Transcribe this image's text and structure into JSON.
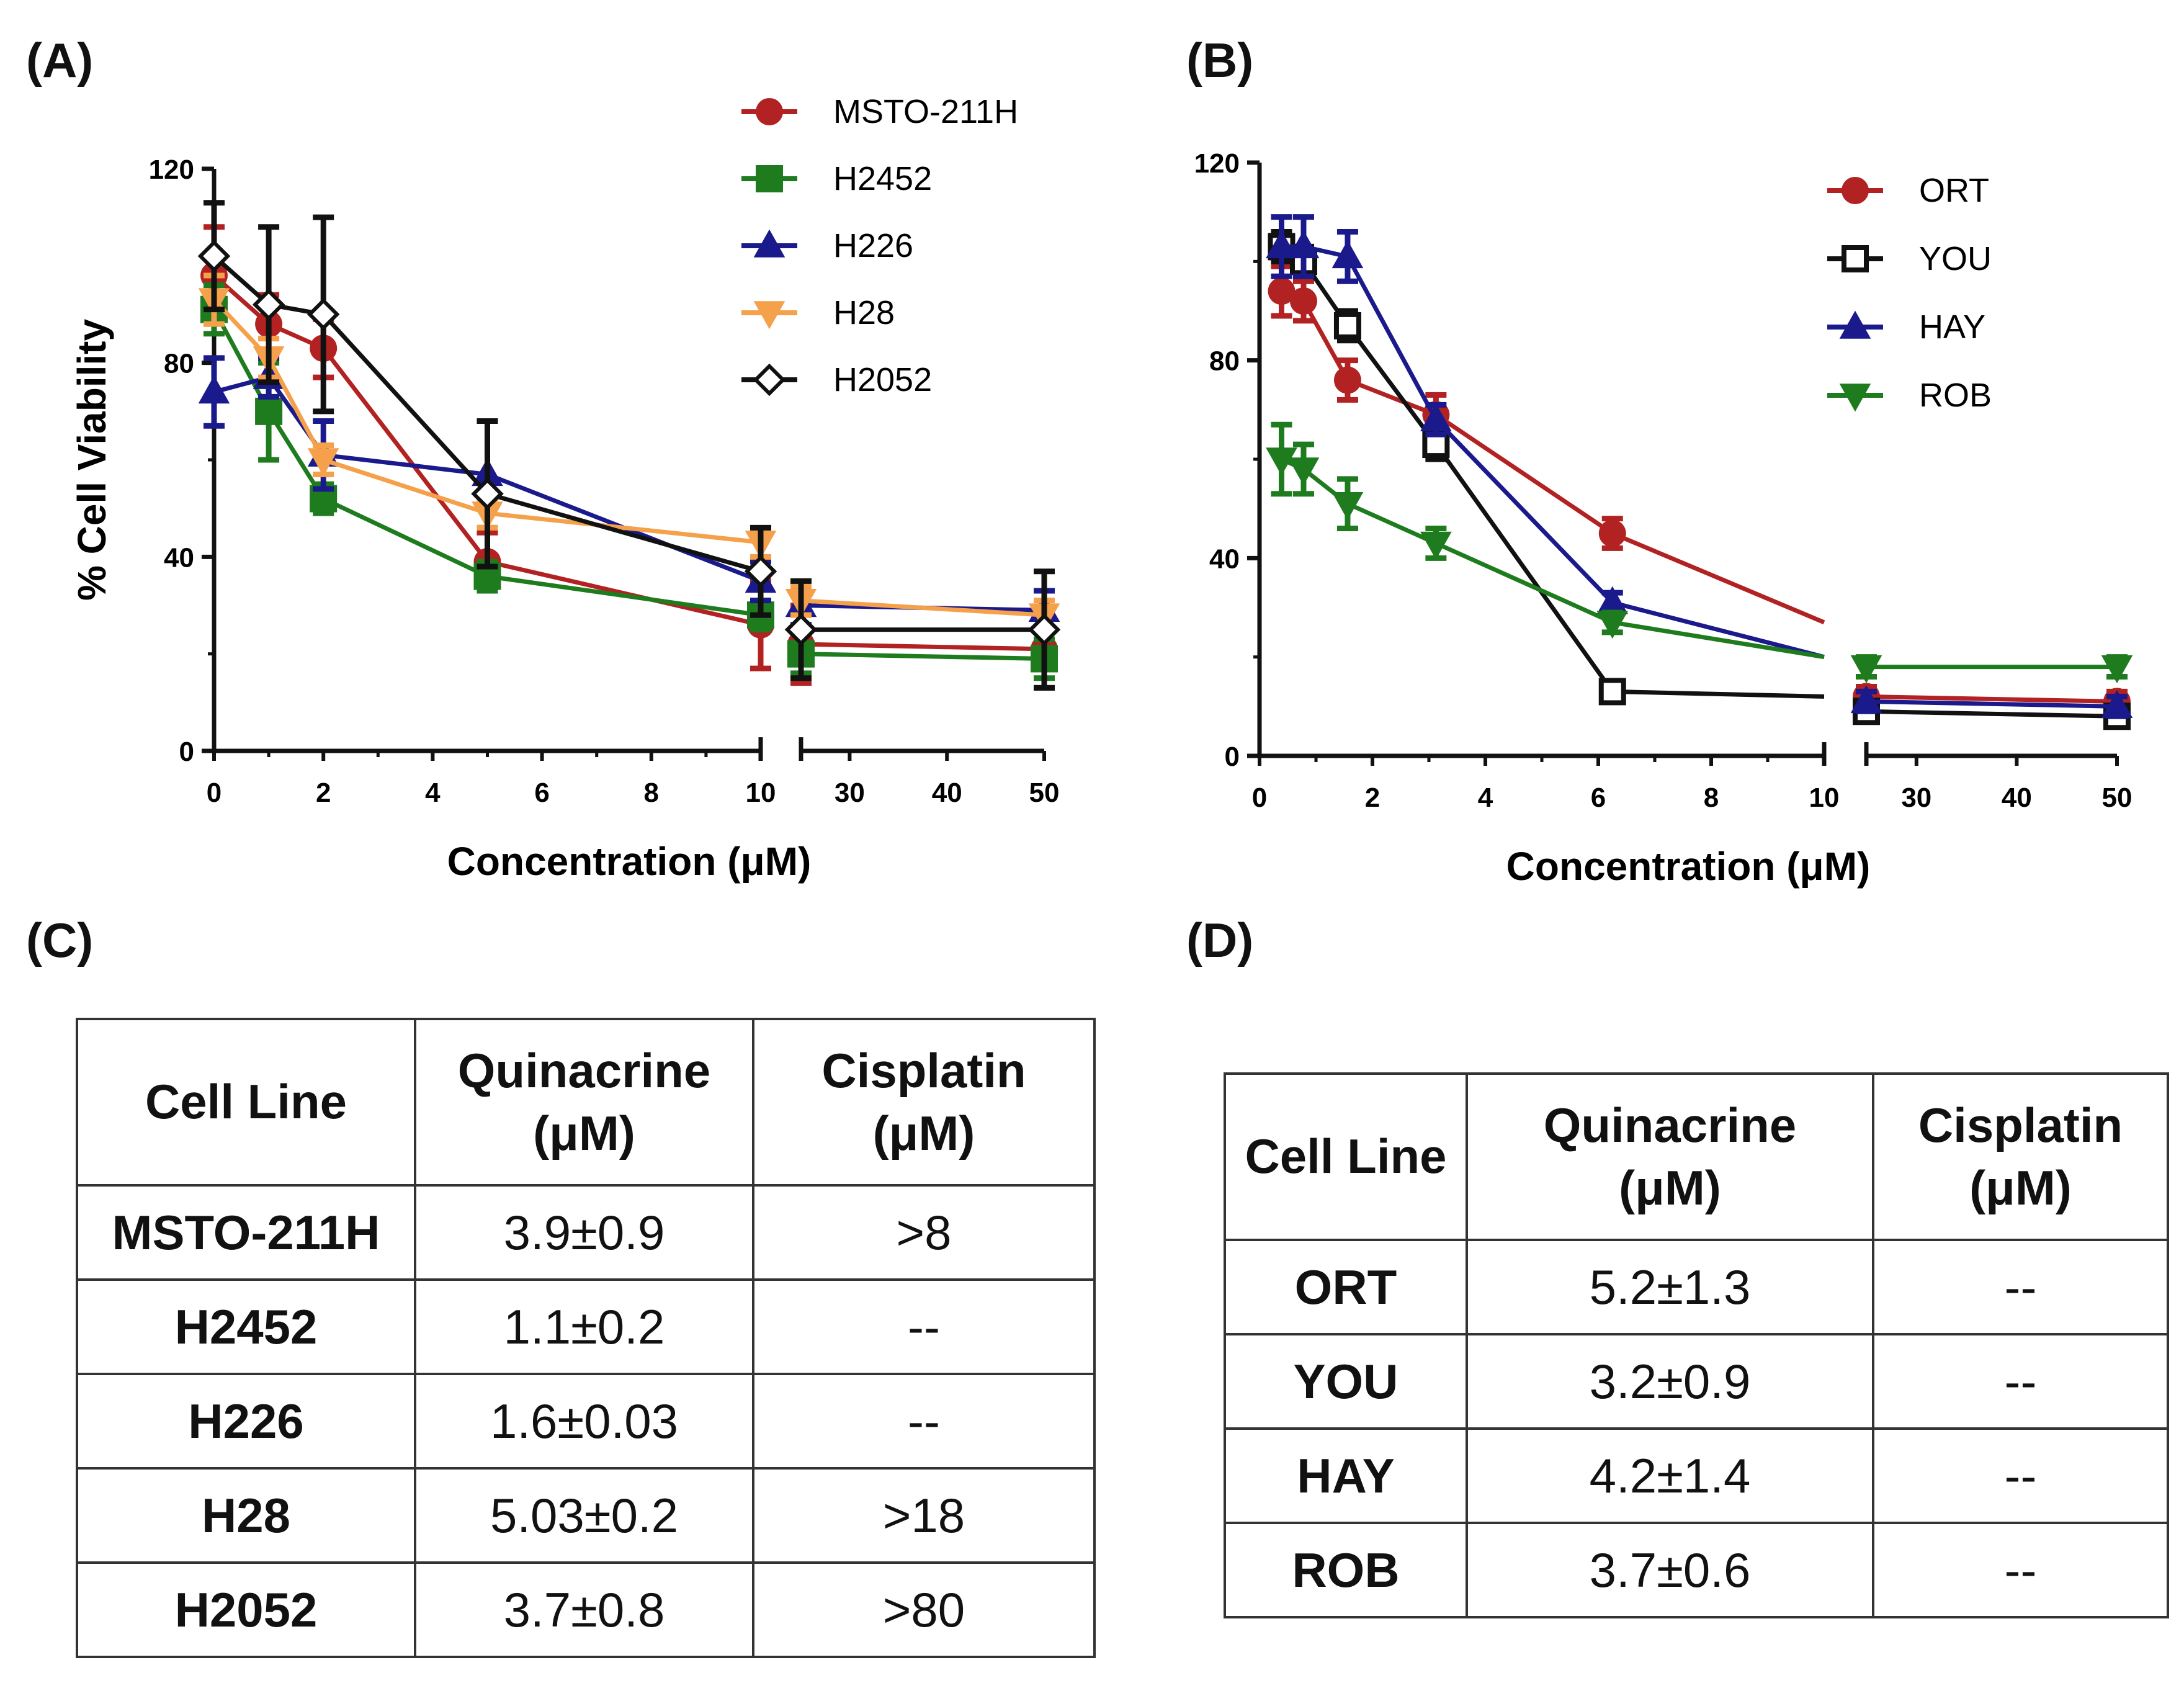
{
  "chart_data": [
    {
      "type": "line",
      "panel": "(A)",
      "xlabel": "Concentration (μM)",
      "ylabel": "% Cell Viability",
      "ylim": [
        0,
        120
      ],
      "yticks": [
        "0",
        "40",
        "80",
        "120"
      ],
      "xticks_left": [
        "0",
        "2",
        "4",
        "6",
        "8",
        "10"
      ],
      "xticks_right": [
        "30",
        "40",
        "50"
      ],
      "x_break": [
        10,
        25
      ],
      "legend_position": "top-right",
      "series": [
        {
          "name": "MSTO-211H",
          "color": "#b22222",
          "marker": "circle",
          "x": [
            0,
            1,
            2,
            5,
            10,
            25,
            50
          ],
          "y": [
            98,
            88,
            83,
            39,
            26,
            22,
            21
          ],
          "err": [
            10,
            6,
            6,
            6,
            9,
            8,
            8
          ]
        },
        {
          "name": "H2452",
          "color": "#1e7b1e",
          "marker": "square",
          "x": [
            0,
            1,
            2,
            5,
            10,
            25,
            50
          ],
          "y": [
            91,
            70,
            52,
            36,
            28,
            20,
            19
          ],
          "err": [
            5,
            10,
            3,
            3,
            3,
            4,
            4
          ]
        },
        {
          "name": "H226",
          "color": "#1a1a8c",
          "marker": "triangle-up",
          "x": [
            0,
            1,
            2,
            5,
            10,
            25,
            50
          ],
          "y": [
            74,
            77,
            61,
            57,
            35,
            30,
            29
          ],
          "err": [
            7,
            4,
            7,
            11,
            4,
            4,
            4
          ]
        },
        {
          "name": "H28",
          "color": "#f5a04a",
          "marker": "triangle-down",
          "x": [
            0,
            1,
            2,
            5,
            10,
            25,
            50
          ],
          "y": [
            93,
            81,
            60,
            49,
            43,
            31,
            28
          ],
          "err": [
            5,
            4,
            3,
            3,
            3,
            3,
            3
          ]
        },
        {
          "name": "H2052",
          "color": "#111111",
          "marker": "diamond-open",
          "x": [
            0,
            1,
            2,
            5,
            10,
            25,
            50
          ],
          "y": [
            102,
            92,
            90,
            53,
            37,
            25,
            25
          ],
          "err": [
            11,
            16,
            20,
            15,
            9,
            10,
            12
          ]
        }
      ]
    },
    {
      "type": "line",
      "panel": "(B)",
      "xlabel": "Concentration (μM)",
      "ylabel": "% Cell Viability",
      "ylim": [
        0,
        120
      ],
      "yticks": [
        "0",
        "40",
        "80",
        "120"
      ],
      "xticks_left": [
        "0",
        "2",
        "4",
        "6",
        "8",
        "10"
      ],
      "xticks_right": [
        "30",
        "40",
        "50"
      ],
      "x_break": [
        10,
        25
      ],
      "legend_position": "top-right",
      "series": [
        {
          "name": "ORT",
          "color": "#b22222",
          "marker": "circle",
          "x": [
            0.39,
            0.78,
            1.56,
            3.125,
            6.25,
            10,
            25,
            50
          ],
          "y": [
            94,
            92,
            76,
            69,
            45,
            27,
            12,
            11
          ],
          "err": [
            5,
            4,
            4,
            4,
            3,
            0,
            2,
            2
          ]
        },
        {
          "name": "YOU",
          "color": "#111111",
          "marker": "square-open",
          "x": [
            0.39,
            0.78,
            1.56,
            3.125,
            6.25,
            10,
            25,
            50
          ],
          "y": [
            103,
            100,
            87,
            63,
            13,
            12,
            9,
            8
          ],
          "err": [
            3,
            3,
            3,
            3,
            2,
            0,
            2,
            2
          ]
        },
        {
          "name": "HAY",
          "color": "#1a1a8c",
          "marker": "triangle-up",
          "x": [
            0.39,
            0.78,
            1.56,
            3.125,
            6.25,
            10,
            25,
            50
          ],
          "y": [
            103,
            103,
            101,
            68,
            31,
            20,
            11,
            10
          ],
          "err": [
            6,
            6,
            5,
            3,
            2,
            0,
            2,
            2
          ]
        },
        {
          "name": "ROB",
          "color": "#1e7b1e",
          "marker": "triangle-down",
          "x": [
            0.39,
            0.78,
            1.56,
            3.125,
            6.25,
            10,
            25,
            50
          ],
          "y": [
            60,
            58,
            51,
            43,
            27,
            20,
            18,
            18
          ],
          "err": [
            7,
            5,
            5,
            3,
            2,
            0,
            2,
            2
          ]
        }
      ]
    }
  ],
  "tables": {
    "c": {
      "label": "(C)",
      "headers": [
        "Cell Line",
        "Quinacrine\n(μM)",
        "Cisplatin\n(μM)"
      ],
      "rows": [
        [
          "MSTO-211H",
          "3.9±0.9",
          ">8"
        ],
        [
          "H2452",
          "1.1±0.2",
          "--"
        ],
        [
          "H226",
          "1.6±0.03",
          "--"
        ],
        [
          "H28",
          "5.03±0.2",
          ">18"
        ],
        [
          "H2052",
          "3.7±0.8",
          ">80"
        ]
      ]
    },
    "d": {
      "label": "(D)",
      "headers": [
        "Cell Line",
        "Quinacrine\n(μM)",
        "Cisplatin\n(μM)"
      ],
      "rows": [
        [
          "ORT",
          "5.2±1.3",
          "--"
        ],
        [
          "YOU",
          "3.2±0.9",
          "--"
        ],
        [
          "HAY",
          "4.2±1.4",
          "--"
        ],
        [
          "ROB",
          "3.7±0.6",
          "--"
        ]
      ]
    }
  }
}
